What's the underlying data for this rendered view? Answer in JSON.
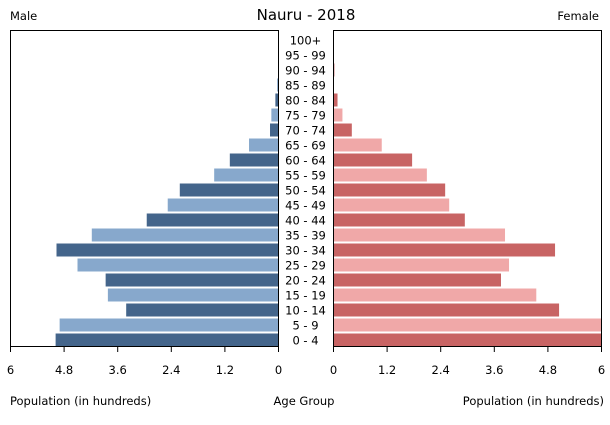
{
  "chart_data": {
    "type": "bar",
    "orientation": "horizontal-pyramid",
    "title": "Nauru - 2018",
    "left_label": "Male",
    "right_label": "Female",
    "xlabel_left": "Population (in hundreds)",
    "xlabel_center": "Age Group",
    "xlabel_right": "Population (in hundreds)",
    "xlim": [
      0,
      6
    ],
    "ticks_left": [
      "6",
      "4.8",
      "3.6",
      "2.4",
      "1.2",
      "0"
    ],
    "ticks_right": [
      "0",
      "1.2",
      "2.4",
      "3.6",
      "4.8",
      "6"
    ],
    "tick_values": [
      0,
      1.2,
      2.4,
      3.6,
      4.8,
      6
    ],
    "categories": [
      "100+",
      "95 - 99",
      "90 - 94",
      "85 - 89",
      "80 - 84",
      "75 - 79",
      "70 - 74",
      "65 - 69",
      "60 - 64",
      "55 - 59",
      "50 - 54",
      "45 - 49",
      "40 - 44",
      "35 - 39",
      "30 - 34",
      "25 - 29",
      "20 - 24",
      "15 - 19",
      "10 - 14",
      "5 - 9",
      "0 - 4"
    ],
    "series": [
      {
        "name": "Male",
        "values": [
          0,
          0,
          0,
          0.03,
          0.07,
          0.16,
          0.19,
          0.66,
          1.09,
          1.44,
          2.21,
          2.48,
          2.95,
          4.18,
          4.97,
          4.5,
          3.87,
          3.82,
          3.41,
          4.9,
          4.99
        ]
      },
      {
        "name": "Female",
        "values": [
          0,
          0,
          0.02,
          0.01,
          0.09,
          0.2,
          0.41,
          1.08,
          1.76,
          2.09,
          2.5,
          2.59,
          2.94,
          3.84,
          4.96,
          3.93,
          3.75,
          4.54,
          5.05,
          6.0,
          6.0
        ]
      }
    ],
    "colors": {
      "male_dark": "#44658b",
      "male_light": "#87a8cc",
      "female_dark": "#c86464",
      "female_light": "#f0a8a8"
    },
    "grid": false
  }
}
